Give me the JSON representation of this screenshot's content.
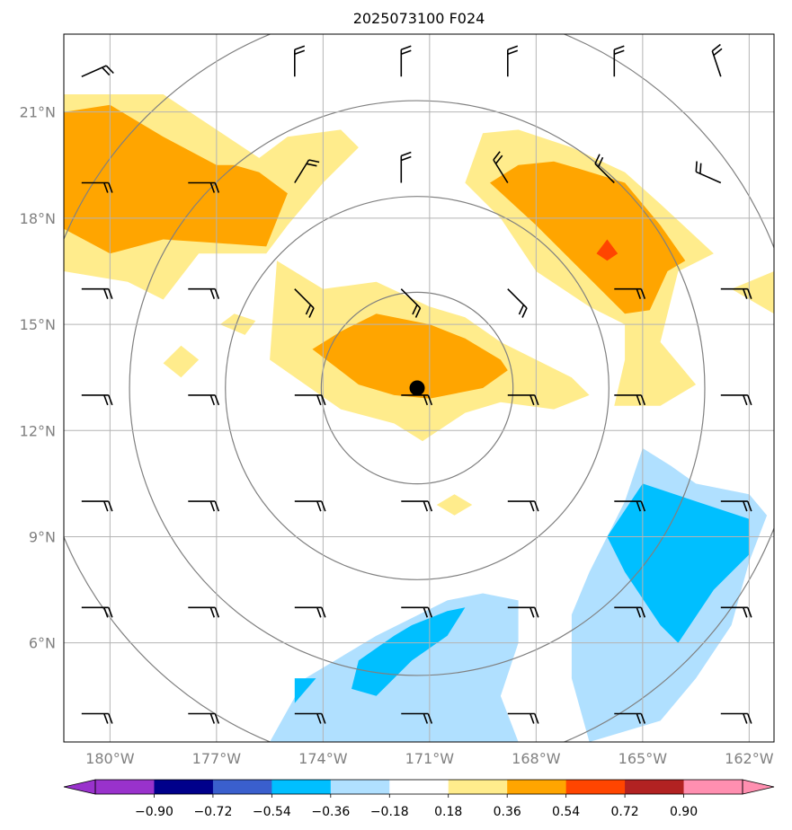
{
  "title": "2025073100 F024",
  "map": {
    "lon_range": [
      -181.3,
      -161.3
    ],
    "lat_range": [
      3.2,
      23.2
    ],
    "lon_ticks": [
      {
        "value": -180,
        "label": "180°W"
      },
      {
        "value": -177,
        "label": "177°W"
      },
      {
        "value": -174,
        "label": "174°W"
      },
      {
        "value": -171,
        "label": "171°W"
      },
      {
        "value": -168,
        "label": "168°W"
      },
      {
        "value": -165,
        "label": "165°W"
      },
      {
        "value": -162,
        "label": "162°W"
      }
    ],
    "lat_ticks": [
      {
        "value": 21,
        "label": "21°N"
      },
      {
        "value": 18,
        "label": "18°N"
      },
      {
        "value": 15,
        "label": "15°N"
      },
      {
        "value": 12,
        "label": "12°N"
      },
      {
        "value": 9,
        "label": "9°N"
      },
      {
        "value": 6,
        "label": "6°N"
      }
    ],
    "grid": true,
    "center": {
      "lon": -171.35,
      "lat": 13.2
    },
    "range_ring_radii_deg": [
      2.7,
      5.4,
      8.1,
      10.8
    ],
    "filled_contours": [
      {
        "level": "0.18 to 0.36",
        "color": "#ffec8c",
        "points": [
          [
            -181.3,
            21.5
          ],
          [
            -178.5,
            21.5
          ],
          [
            -177,
            20.5
          ],
          [
            -175.8,
            19.7
          ],
          [
            -175,
            20.3
          ],
          [
            -173.5,
            20.5
          ],
          [
            -173,
            20
          ],
          [
            -174,
            19
          ],
          [
            -175,
            17.8
          ],
          [
            -175.6,
            17
          ],
          [
            -177.5,
            17
          ],
          [
            -178.5,
            15.7
          ],
          [
            -179.5,
            16.2
          ],
          [
            -181.3,
            16.5
          ]
        ]
      },
      {
        "level": "0.18 to 0.36",
        "color": "#ffec8c",
        "points": [
          [
            -175.3,
            16.8
          ],
          [
            -174,
            16
          ],
          [
            -172.5,
            16.2
          ],
          [
            -171,
            15.5
          ],
          [
            -170,
            15.2
          ],
          [
            -169,
            14.5
          ],
          [
            -168,
            14
          ],
          [
            -167,
            13.5
          ],
          [
            -166.5,
            13
          ],
          [
            -167.5,
            12.6
          ],
          [
            -169,
            12.8
          ],
          [
            -170,
            12.5
          ],
          [
            -171.2,
            11.7
          ],
          [
            -172,
            12.2
          ],
          [
            -173.5,
            12.6
          ],
          [
            -174.5,
            13.3
          ],
          [
            -175.5,
            14
          ]
        ]
      },
      {
        "level": "0.18 to 0.36",
        "color": "#ffec8c",
        "points": [
          [
            -169.5,
            20.4
          ],
          [
            -168.5,
            20.5
          ],
          [
            -167,
            20
          ],
          [
            -165.5,
            19.3
          ],
          [
            -164.5,
            18.4
          ],
          [
            -163,
            17
          ],
          [
            -164,
            16.5
          ],
          [
            -164.5,
            14.5
          ],
          [
            -163.5,
            13.3
          ],
          [
            -164.5,
            12.7
          ],
          [
            -165.8,
            12.7
          ],
          [
            -165.5,
            14
          ],
          [
            -165.5,
            15
          ],
          [
            -166.5,
            15.5
          ],
          [
            -168,
            16.5
          ],
          [
            -169,
            18
          ],
          [
            -170,
            19
          ]
        ]
      },
      {
        "level": "0.18 to 0.36",
        "color": "#ffec8c",
        "points": [
          [
            -161.3,
            16.5
          ],
          [
            -162.5,
            16
          ],
          [
            -161.3,
            15.3
          ]
        ]
      },
      {
        "level": "0.18 to 0.36",
        "color": "#ffec8c",
        "points": [
          [
            -176.5,
            15.3
          ],
          [
            -175.9,
            15.1
          ],
          [
            -176.2,
            14.7
          ],
          [
            -176.9,
            15.0
          ]
        ]
      },
      {
        "level": "0.18 to 0.36",
        "color": "#ffec8c",
        "points": [
          [
            -178,
            14.4
          ],
          [
            -177.5,
            14
          ],
          [
            -178,
            13.5
          ],
          [
            -178.5,
            13.9
          ]
        ]
      },
      {
        "level": "0.18 to 0.36",
        "color": "#ffec8c",
        "points": [
          [
            -170.3,
            10.2
          ],
          [
            -169.8,
            9.9
          ],
          [
            -170.3,
            9.6
          ],
          [
            -170.8,
            9.9
          ]
        ]
      },
      {
        "level": "0.36 to 0.54",
        "color": "#ffa500",
        "points": [
          [
            -181.3,
            21
          ],
          [
            -180,
            21.2
          ],
          [
            -178.5,
            20.3
          ],
          [
            -177,
            19.5
          ],
          [
            -176.5,
            19.5
          ],
          [
            -175.8,
            19.3
          ],
          [
            -175,
            18.7
          ],
          [
            -175.6,
            17.2
          ],
          [
            -177,
            17.3
          ],
          [
            -178.5,
            17.4
          ],
          [
            -180,
            17
          ],
          [
            -181.3,
            17.7
          ]
        ]
      },
      {
        "level": "0.36 to 0.54",
        "color": "#ffa500",
        "points": [
          [
            -174.3,
            14.3
          ],
          [
            -173.5,
            14.8
          ],
          [
            -172.5,
            15.3
          ],
          [
            -171,
            15
          ],
          [
            -170,
            14.6
          ],
          [
            -169,
            14
          ],
          [
            -168.8,
            13.7
          ],
          [
            -169.5,
            13.2
          ],
          [
            -171,
            12.9
          ],
          [
            -172,
            13
          ],
          [
            -173,
            13.3
          ]
        ]
      },
      {
        "level": "0.36 to 0.54",
        "color": "#ffa500",
        "points": [
          [
            -168.5,
            19.5
          ],
          [
            -167.5,
            19.6
          ],
          [
            -166.8,
            19.4
          ],
          [
            -165.5,
            19
          ],
          [
            -164.5,
            17.8
          ],
          [
            -163.8,
            16.8
          ],
          [
            -164.3,
            16.5
          ],
          [
            -164.8,
            15.4
          ],
          [
            -165.5,
            15.3
          ],
          [
            -166,
            15.8
          ],
          [
            -167,
            16.8
          ],
          [
            -168,
            17.8
          ],
          [
            -169.3,
            19
          ]
        ]
      },
      {
        "level": "0.54 to 0.72",
        "color": "#ff4500",
        "points": [
          [
            -166,
            17.4
          ],
          [
            -165.7,
            17
          ],
          [
            -166,
            16.8
          ],
          [
            -166.3,
            17
          ]
        ]
      },
      {
        "level": "-0.36 to -0.18",
        "color": "#b0e0ff",
        "points": [
          [
            -175.5,
            3.2
          ],
          [
            -174.5,
            5
          ],
          [
            -172.5,
            6.2
          ],
          [
            -170.5,
            7.2
          ],
          [
            -169.5,
            7.4
          ],
          [
            -168.5,
            7.2
          ],
          [
            -168.5,
            6
          ],
          [
            -169,
            4.5
          ],
          [
            -168.5,
            3.2
          ]
        ]
      },
      {
        "level": "-0.36 to -0.18",
        "color": "#b0e0ff",
        "points": [
          [
            -166.5,
            8
          ],
          [
            -165.5,
            10
          ],
          [
            -165,
            11.5
          ],
          [
            -164.2,
            11
          ],
          [
            -163.5,
            10.5
          ],
          [
            -162,
            10.2
          ],
          [
            -161.5,
            9.6
          ],
          [
            -162,
            8.3
          ],
          [
            -162.5,
            6.5
          ],
          [
            -163.5,
            5
          ],
          [
            -164.5,
            3.8
          ],
          [
            -166.5,
            3.2
          ],
          [
            -167,
            5
          ],
          [
            -167,
            6.8
          ]
        ]
      },
      {
        "level": "-0.54 to -0.36",
        "color": "#00bfff",
        "points": [
          [
            -172.5,
            4.5
          ],
          [
            -171.5,
            5.5
          ],
          [
            -170.5,
            6.2
          ],
          [
            -170,
            7
          ],
          [
            -170.5,
            6.9
          ],
          [
            -171.5,
            6.5
          ],
          [
            -172,
            6.2
          ],
          [
            -173,
            5.5
          ],
          [
            -173.2,
            4.7
          ]
        ]
      },
      {
        "level": "-0.54 to -0.36",
        "color": "#00bfff",
        "points": [
          [
            -174.8,
            5
          ],
          [
            -174.2,
            5
          ],
          [
            -174.8,
            4.3
          ]
        ]
      },
      {
        "level": "-0.54 to -0.36",
        "color": "#00bfff",
        "points": [
          [
            -166,
            9
          ],
          [
            -165,
            10.5
          ],
          [
            -163.5,
            10
          ],
          [
            -162,
            9.5
          ],
          [
            -162,
            8.5
          ],
          [
            -163,
            7.5
          ],
          [
            -164,
            6
          ],
          [
            -164.5,
            6.5
          ],
          [
            -165.5,
            8
          ]
        ]
      }
    ],
    "colorbar": {
      "levels": [
        "−0.90",
        "−0.72",
        "−0.54",
        "−0.36",
        "−0.18",
        "0.18",
        "0.36",
        "0.54",
        "0.72",
        "0.90"
      ],
      "colors": [
        "#9932cc",
        "#00008b",
        "#3a5fcd",
        "#00bfff",
        "#b0e0ff",
        "#ffffff",
        "#ffec8c",
        "#ffa500",
        "#ff4500",
        "#b22222",
        "#ff8fb0"
      ]
    },
    "wind_barbs": [
      {
        "lon": -180.8,
        "lat": 4.0,
        "u": -10,
        "v": 0
      },
      {
        "lon": -177.8,
        "lat": 4.0,
        "u": -10,
        "v": 0
      },
      {
        "lon": -174.8,
        "lat": 4.0,
        "u": -10,
        "v": 0
      },
      {
        "lon": -171.8,
        "lat": 4.0,
        "u": -10,
        "v": 0
      },
      {
        "lon": -168.8,
        "lat": 4.0,
        "u": -10,
        "v": 0
      },
      {
        "lon": -165.8,
        "lat": 4.0,
        "u": -10,
        "v": 0
      },
      {
        "lon": -162.8,
        "lat": 4.0,
        "u": -10,
        "v": 0
      },
      {
        "lon": -180.8,
        "lat": 7.0,
        "u": -10,
        "v": 0
      },
      {
        "lon": -177.8,
        "lat": 7.0,
        "u": -10,
        "v": 0
      },
      {
        "lon": -174.8,
        "lat": 7.0,
        "u": -10,
        "v": 0
      },
      {
        "lon": -171.8,
        "lat": 7.0,
        "u": -10,
        "v": 0
      },
      {
        "lon": -168.8,
        "lat": 7.0,
        "u": -10,
        "v": 0
      },
      {
        "lon": -165.8,
        "lat": 7.0,
        "u": -10,
        "v": 0
      },
      {
        "lon": -162.8,
        "lat": 7.0,
        "u": -10,
        "v": 0
      },
      {
        "lon": -180.8,
        "lat": 10.0,
        "u": -10,
        "v": 0
      },
      {
        "lon": -177.8,
        "lat": 10.0,
        "u": -10,
        "v": 0
      },
      {
        "lon": -174.8,
        "lat": 10.0,
        "u": -10,
        "v": 0
      },
      {
        "lon": -171.8,
        "lat": 10.0,
        "u": -10,
        "v": 0
      },
      {
        "lon": -168.8,
        "lat": 10.0,
        "u": -10,
        "v": 0
      },
      {
        "lon": -165.8,
        "lat": 10.0,
        "u": -10,
        "v": 0
      },
      {
        "lon": -162.8,
        "lat": 10.0,
        "u": -10,
        "v": 0
      },
      {
        "lon": -180.8,
        "lat": 13.0,
        "u": -10,
        "v": 0
      },
      {
        "lon": -177.8,
        "lat": 13.0,
        "u": -10,
        "v": 0
      },
      {
        "lon": -174.8,
        "lat": 13.0,
        "u": -10,
        "v": 0
      },
      {
        "lon": -171.8,
        "lat": 13.0,
        "u": -10,
        "v": 0
      },
      {
        "lon": -168.8,
        "lat": 13.0,
        "u": -10,
        "v": 0
      },
      {
        "lon": -165.8,
        "lat": 13.0,
        "u": -10,
        "v": 0
      },
      {
        "lon": -162.8,
        "lat": 13.0,
        "u": -10,
        "v": 0
      },
      {
        "lon": -180.8,
        "lat": 16.0,
        "u": -10,
        "v": 0
      },
      {
        "lon": -177.8,
        "lat": 16.0,
        "u": -10,
        "v": 0
      },
      {
        "lon": -174.8,
        "lat": 16.0,
        "u": -7,
        "v": 7
      },
      {
        "lon": -171.8,
        "lat": 16.0,
        "u": -7,
        "v": 7
      },
      {
        "lon": -168.8,
        "lat": 16.0,
        "u": -7,
        "v": 7
      },
      {
        "lon": -165.8,
        "lat": 16.0,
        "u": -10,
        "v": 0
      },
      {
        "lon": -162.8,
        "lat": 16.0,
        "u": -10,
        "v": 0
      },
      {
        "lon": -180.8,
        "lat": 19.0,
        "u": -10,
        "v": 0
      },
      {
        "lon": -177.8,
        "lat": 19.0,
        "u": -10,
        "v": 0
      },
      {
        "lon": -174.8,
        "lat": 19.0,
        "u": -5,
        "v": -8
      },
      {
        "lon": -171.8,
        "lat": 19.0,
        "u": 0,
        "v": -10
      },
      {
        "lon": -168.8,
        "lat": 19.0,
        "u": 5,
        "v": -8
      },
      {
        "lon": -165.8,
        "lat": 19.0,
        "u": 7,
        "v": -7
      },
      {
        "lon": -162.8,
        "lat": 19.0,
        "u": 9,
        "v": -4
      },
      {
        "lon": -180.8,
        "lat": 22.0,
        "u": -9,
        "v": -4
      },
      {
        "lon": -174.8,
        "lat": 22.0,
        "u": 0,
        "v": -10
      },
      {
        "lon": -171.8,
        "lat": 22.0,
        "u": 0,
        "v": -10
      },
      {
        "lon": -168.8,
        "lat": 22.0,
        "u": 0,
        "v": -10
      },
      {
        "lon": -165.8,
        "lat": 22.0,
        "u": 0,
        "v": -10
      },
      {
        "lon": -162.8,
        "lat": 22.0,
        "u": 3,
        "v": -9
      }
    ]
  }
}
